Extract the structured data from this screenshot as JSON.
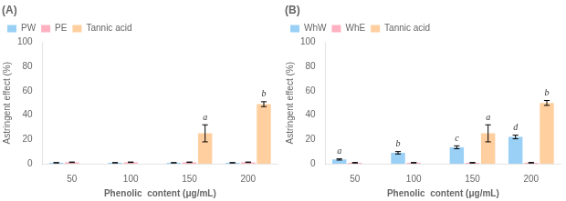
{
  "chart_data": [
    {
      "type": "bar",
      "title": "(A)",
      "categories": [
        "50",
        "100",
        "150",
        "200"
      ],
      "series": [
        {
          "name": "PW",
          "values": [
            0.8,
            0.8,
            0.8,
            0.8
          ],
          "errors": [
            0.1,
            0.1,
            0.1,
            0.1
          ],
          "letters": [
            null,
            null,
            null,
            null
          ]
        },
        {
          "name": "PE",
          "values": [
            1.2,
            1.2,
            1.2,
            1.2
          ],
          "errors": [
            0.2,
            0.2,
            0.2,
            0.2
          ],
          "letters": [
            null,
            null,
            null,
            null
          ]
        },
        {
          "name": "Tannic acid",
          "values": [
            0.0,
            0.0,
            25.0,
            49.0
          ],
          "errors": [
            0.0,
            0.0,
            7.0,
            2.0
          ],
          "letters": [
            null,
            null,
            "a",
            "b"
          ]
        }
      ],
      "xlabel": "Phenolic  content (μg/mL)",
      "ylabel": "Astringent effect (%)",
      "ylim": [
        0,
        100
      ],
      "yticks": [
        0,
        20,
        40,
        60,
        80,
        100
      ],
      "grid": false,
      "legend": "upper left"
    },
    {
      "type": "bar",
      "title": "(B)",
      "categories": [
        "50",
        "100",
        "150",
        "200"
      ],
      "series": [
        {
          "name": "WhW",
          "values": [
            3.5,
            9.0,
            13.5,
            22.0
          ],
          "errors": [
            0.5,
            1.0,
            1.2,
            1.5
          ],
          "letters": [
            "a",
            "b",
            "c",
            "d"
          ]
        },
        {
          "name": "WhE",
          "values": [
            0.8,
            0.8,
            0.8,
            0.8
          ],
          "errors": [
            0.2,
            0.2,
            0.2,
            0.2
          ],
          "letters": [
            null,
            null,
            null,
            null
          ]
        },
        {
          "name": "Tannic acid",
          "values": [
            0.0,
            0.0,
            25.0,
            50.0
          ],
          "errors": [
            0.0,
            0.0,
            7.0,
            2.0
          ],
          "letters": [
            null,
            null,
            "a",
            "b"
          ]
        }
      ],
      "xlabel": "Phenolic  content (μg/mL)",
      "ylabel": "Astringent effect (%)",
      "ylim": [
        0,
        100
      ],
      "yticks": [
        0,
        20,
        40,
        60,
        80,
        100
      ],
      "grid": false,
      "legend": "upper left"
    }
  ]
}
